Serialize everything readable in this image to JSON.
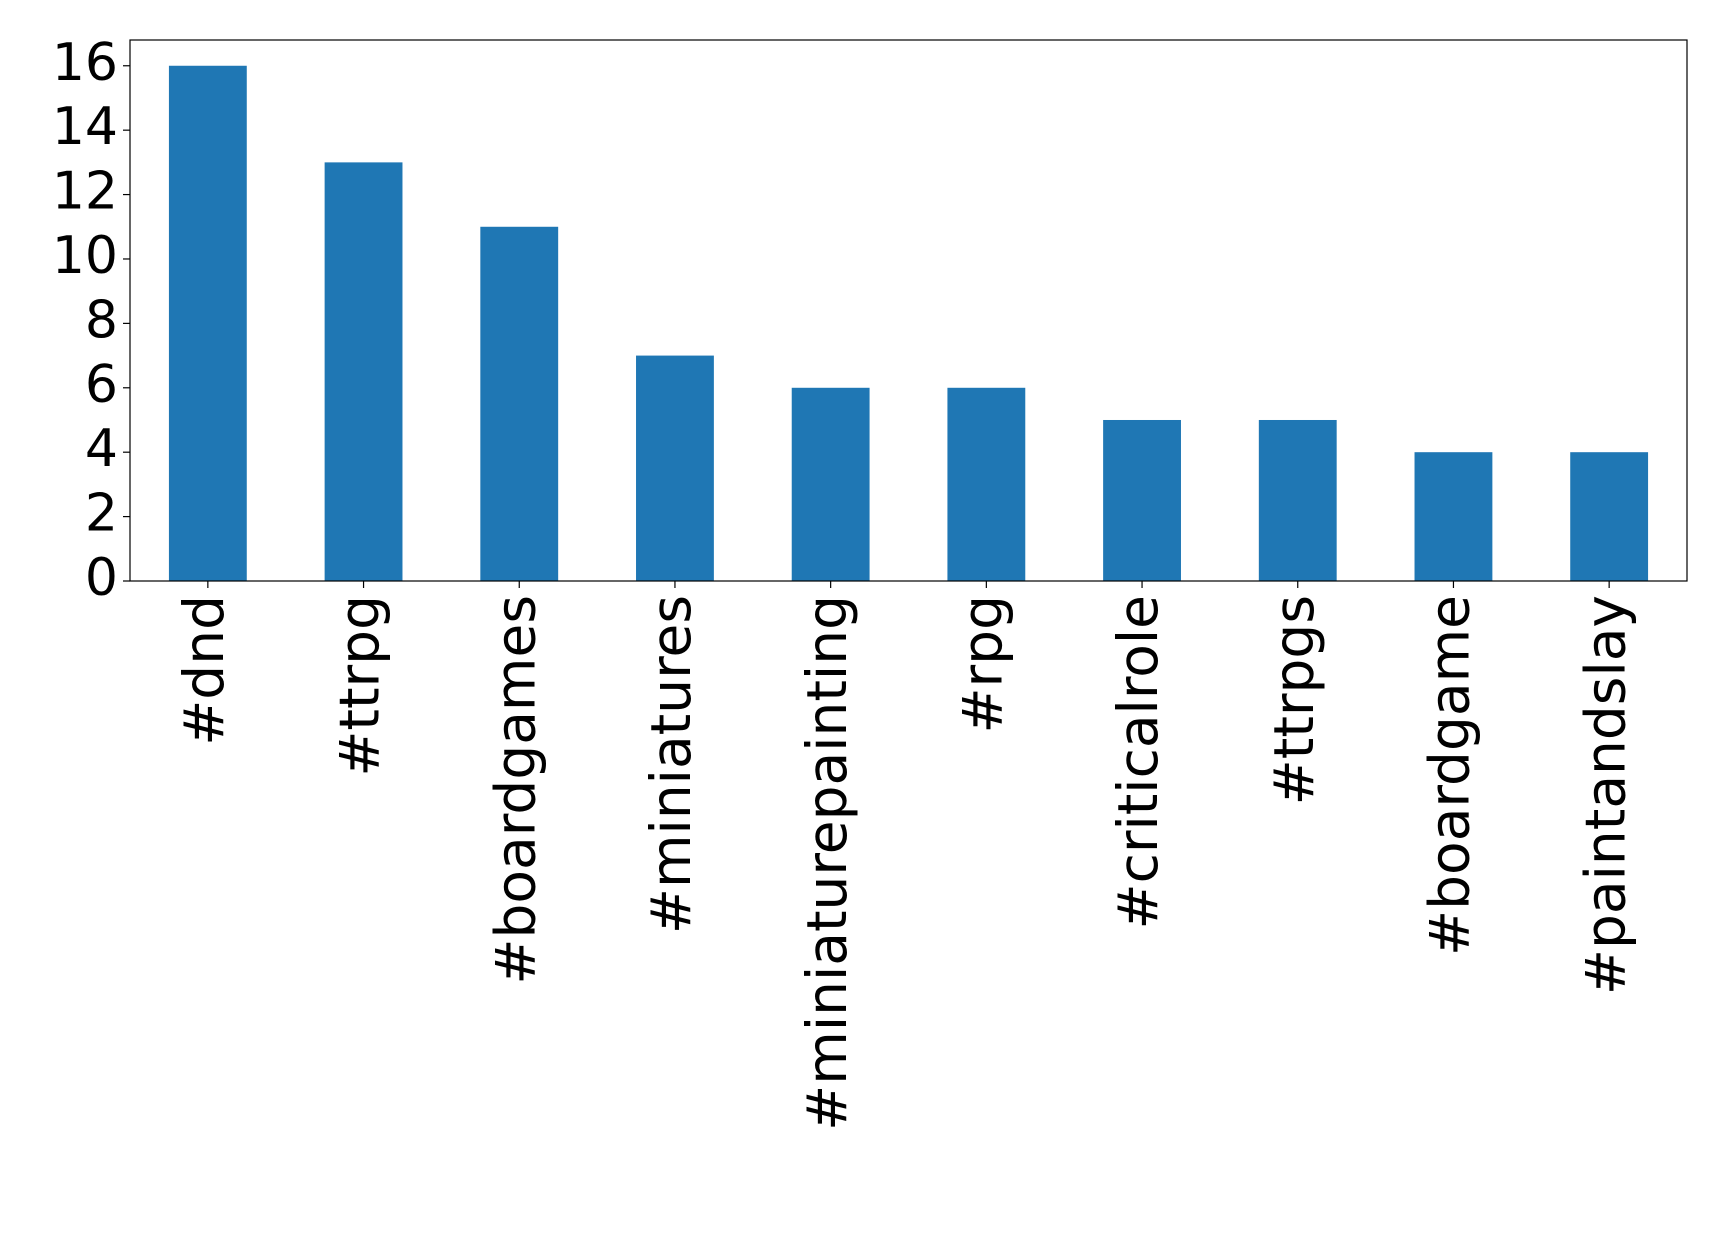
{
  "chart_data": {
    "type": "bar",
    "categories": [
      "#dnd",
      "#ttrpg",
      "#boardgames",
      "#miniatures",
      "#miniaturepainting",
      "#rpg",
      "#criticalrole",
      "#ttrpgs",
      "#boardgame",
      "#paintandslay"
    ],
    "values": [
      16,
      13,
      11,
      7,
      6,
      6,
      5,
      5,
      4,
      4
    ],
    "color": "#1f77b4",
    "ylim": [
      0,
      16.8
    ],
    "yticks": [
      0,
      2,
      4,
      6,
      8,
      10,
      12,
      14,
      16
    ],
    "grid": false
  }
}
